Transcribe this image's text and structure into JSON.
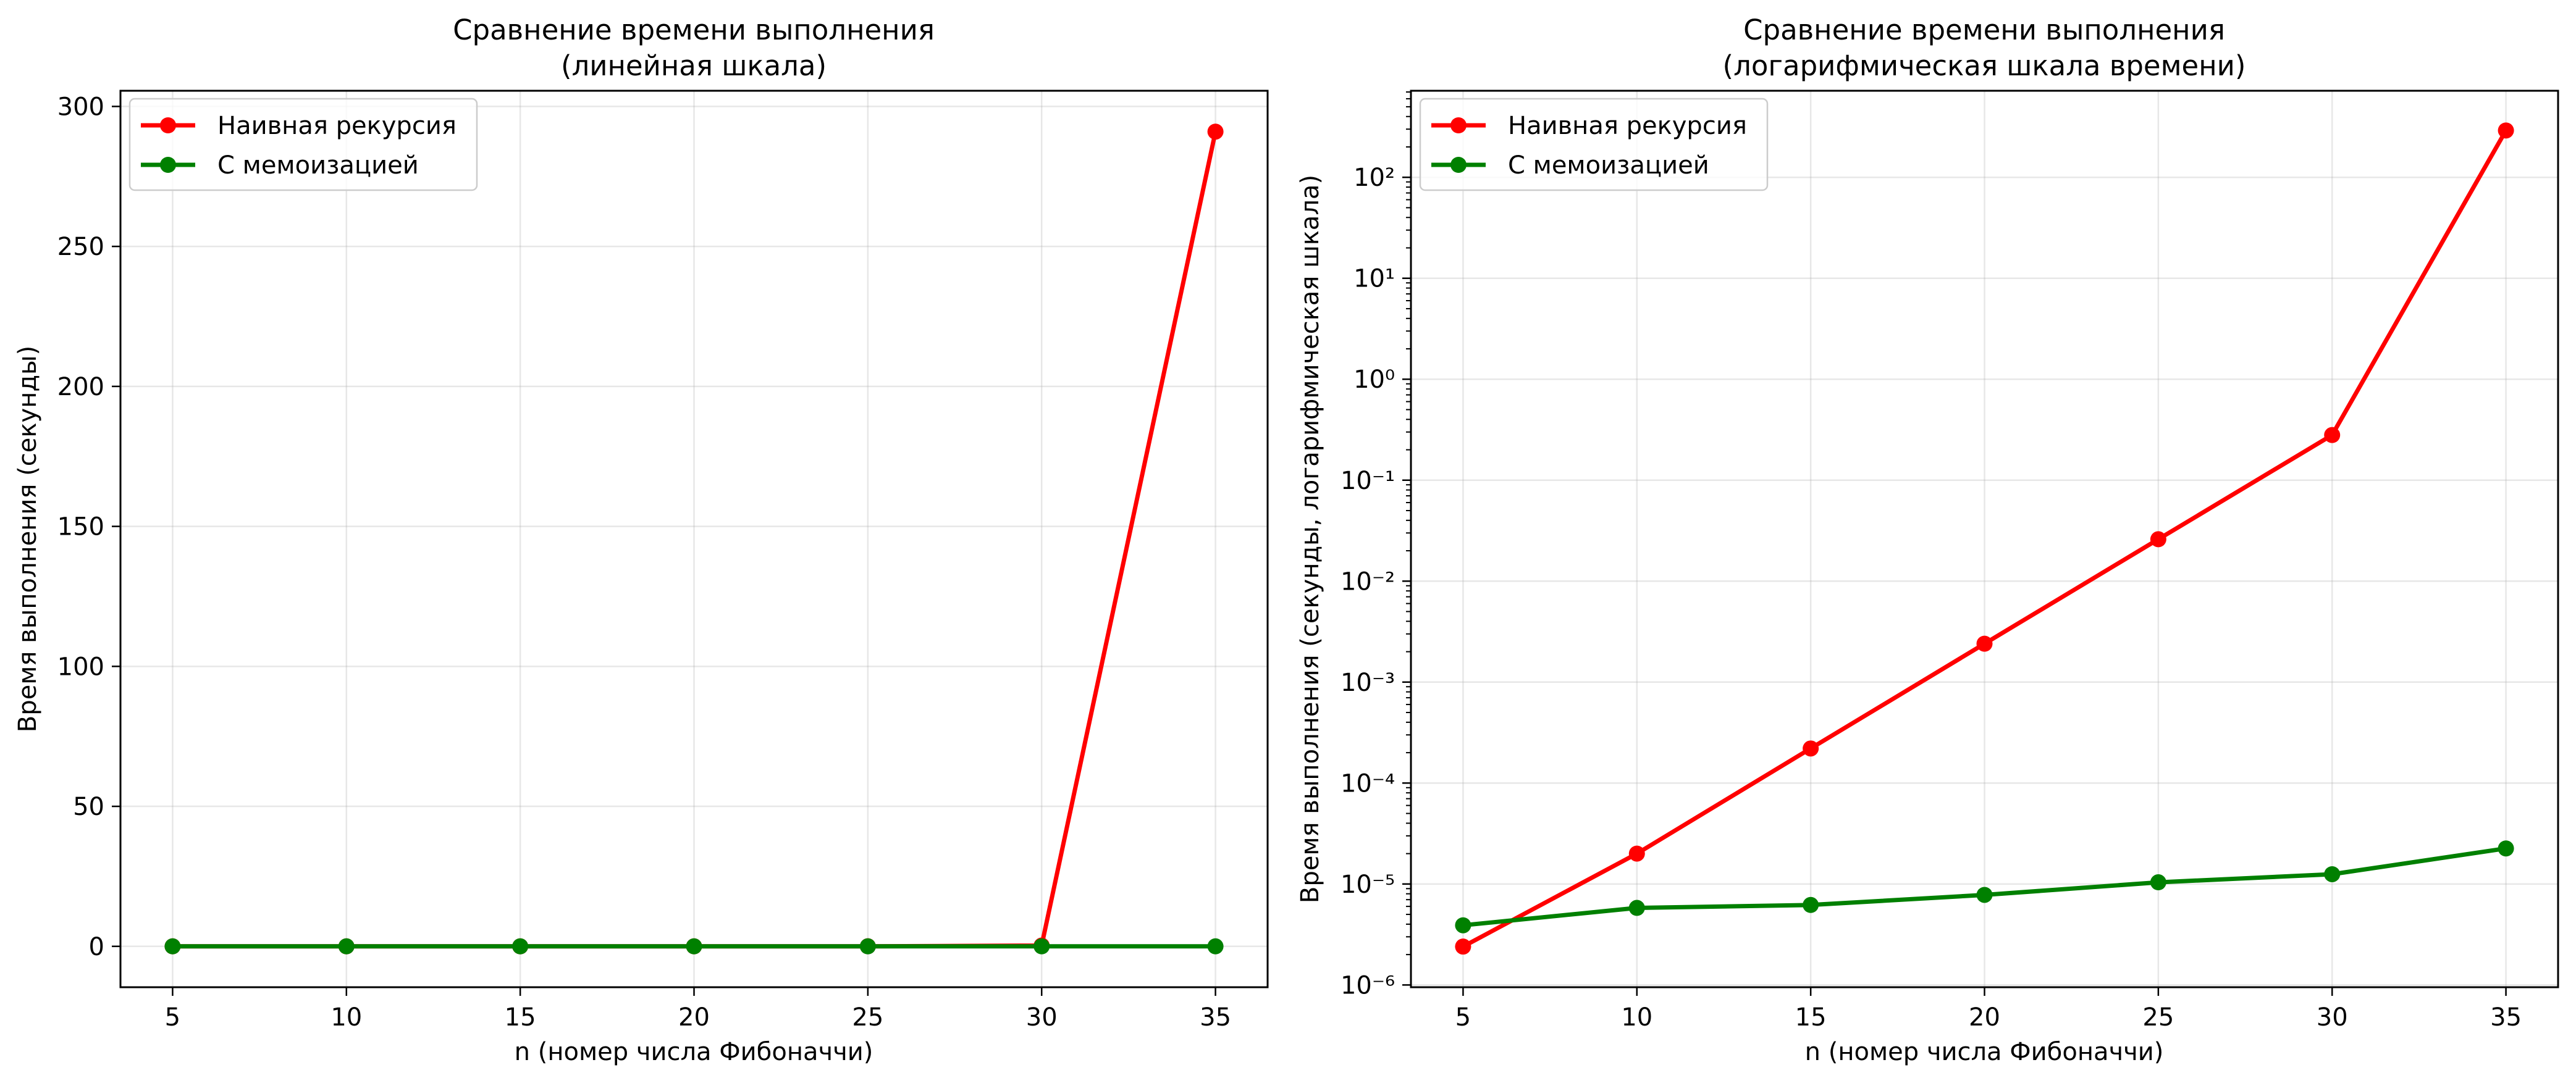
{
  "chart_data": [
    {
      "type": "line",
      "title_line1": "Сравнение времени выполнения",
      "title_line2": "(линейная шкала)",
      "xlabel": "n (номер числа Фибоначчи)",
      "ylabel": "Время выполнения (секунды)",
      "yscale": "linear",
      "xlim": [
        3.5,
        36.5
      ],
      "ylim": [
        -14.6,
        305.6
      ],
      "xticks": [
        5,
        10,
        15,
        20,
        25,
        30,
        35
      ],
      "yticks": [
        0,
        50,
        100,
        150,
        200,
        250,
        300
      ],
      "grid": true,
      "legend_position": "upper left",
      "x": [
        5,
        10,
        15,
        20,
        25,
        30,
        35
      ],
      "series": [
        {
          "name": "Наивная рекурсия",
          "color": "#ff0000",
          "marker": "circle",
          "values": [
            2.4e-06,
            2e-05,
            0.00022,
            0.0024,
            0.026,
            0.28,
            291
          ]
        },
        {
          "name": "С мемоизацией",
          "color": "#008000",
          "marker": "circle",
          "values": [
            3.9e-06,
            5.8e-06,
            6.2e-06,
            7.8e-06,
            1.04e-05,
            1.25e-05,
            2.25e-05
          ]
        }
      ]
    },
    {
      "type": "line",
      "title_line1": "Сравнение времени выполнения",
      "title_line2": "(логарифмическая шкала времени)",
      "xlabel": "n (номер числа Фибоначчи)",
      "ylabel": "Время выполнения (секунды, логарифмическая шкала)",
      "yscale": "log",
      "xlim": [
        3.5,
        36.5
      ],
      "ylim": [
        9.5e-07,
        720
      ],
      "xticks": [
        5,
        10,
        15,
        20,
        25,
        30,
        35
      ],
      "yticks": [
        -6,
        -5,
        -4,
        -3,
        -2,
        -1,
        0,
        1,
        2
      ],
      "grid": true,
      "legend_position": "upper left",
      "x": [
        5,
        10,
        15,
        20,
        25,
        30,
        35
      ],
      "series": [
        {
          "name": "Наивная рекурсия",
          "color": "#ff0000",
          "marker": "circle",
          "values": [
            2.4e-06,
            2e-05,
            0.00022,
            0.0024,
            0.026,
            0.28,
            291
          ]
        },
        {
          "name": "С мемоизацией",
          "color": "#008000",
          "marker": "circle",
          "values": [
            3.9e-06,
            5.8e-06,
            6.2e-06,
            7.8e-06,
            1.04e-05,
            1.25e-05,
            2.25e-05
          ]
        }
      ]
    }
  ]
}
